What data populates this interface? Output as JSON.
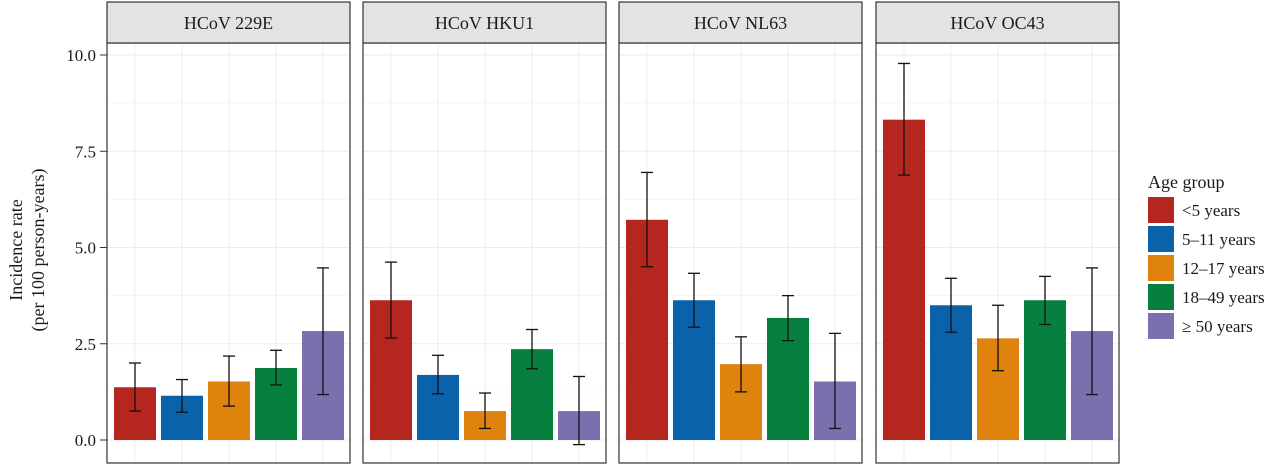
{
  "chart_data": {
    "type": "bar",
    "ylabel": "Incidence rate",
    "ylabel_sub": "(per 100 person-years)",
    "ylim": [
      0,
      10.4
    ],
    "yticks": [
      0,
      2.5,
      5,
      7.5,
      10
    ],
    "ytick_labels": [
      "0.0",
      "2.5",
      "5.0",
      "7.5",
      "10.0"
    ],
    "grid": true,
    "legend": {
      "title": "Age group",
      "placement": "right",
      "items": [
        "<5 years",
        "5–11 years",
        "12–17 years",
        "18–49 years",
        "≥ 50 years"
      ]
    },
    "colors": [
      "#b5261e",
      "#0a62ab",
      "#e0820e",
      "#07803f",
      "#7b6fae"
    ],
    "panels": [
      {
        "title": "HCoV 229E",
        "values": [
          1.37,
          1.15,
          1.52,
          1.87,
          2.83
        ],
        "lower": [
          0.75,
          0.72,
          0.88,
          1.43,
          1.18
        ],
        "upper": [
          2.0,
          1.57,
          2.18,
          2.33,
          4.47
        ]
      },
      {
        "title": "HCoV HKU1",
        "values": [
          3.63,
          1.69,
          0.75,
          2.36,
          0.75
        ],
        "lower": [
          2.65,
          1.2,
          0.3,
          1.85,
          -0.12
        ],
        "upper": [
          4.62,
          2.2,
          1.22,
          2.87,
          1.65
        ]
      },
      {
        "title": "HCoV NL63",
        "values": [
          5.72,
          3.63,
          1.97,
          3.17,
          1.52
        ],
        "lower": [
          4.5,
          2.93,
          1.25,
          2.58,
          0.3
        ],
        "upper": [
          6.95,
          4.33,
          2.68,
          3.75,
          2.77
        ]
      },
      {
        "title": "HCoV OC43",
        "values": [
          8.32,
          3.5,
          2.64,
          3.63,
          2.83
        ],
        "lower": [
          6.88,
          2.8,
          1.8,
          3.0,
          1.18
        ],
        "upper": [
          9.78,
          4.2,
          3.5,
          4.25,
          4.47
        ]
      }
    ]
  }
}
